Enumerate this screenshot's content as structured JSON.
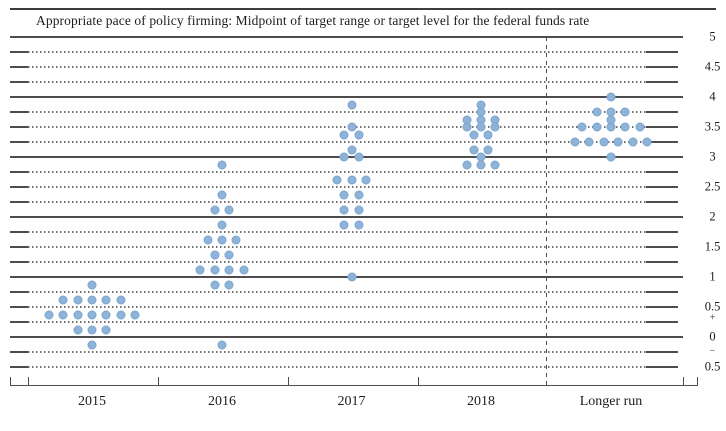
{
  "title": "Appropriate pace of policy firming: Midpoint of target range or target level for the federal funds rate",
  "chart_data": {
    "type": "scatter",
    "subtype": "fomc-dot-plot",
    "title": "Appropriate pace of policy firming: Midpoint of target range or target level for the federal funds rate",
    "xlabel": "",
    "ylabel": "",
    "x_categories": [
      "2015",
      "2016",
      "2017",
      "2018",
      "Longer run"
    ],
    "ylim": [
      -0.5,
      5
    ],
    "grid": {
      "solid_lines_at": [
        0,
        1,
        2,
        3,
        4,
        5
      ],
      "dotted_lines_step": 0.25,
      "dashed_divider_before": "Longer run"
    },
    "legend": "none",
    "dot_color": "#8db3d8",
    "y_axis": {
      "side": "right",
      "ticks": [
        {
          "label": "5",
          "value": 5
        },
        {
          "label": "4.5",
          "value": 4.5
        },
        {
          "label": "4",
          "value": 4
        },
        {
          "label": "3.5",
          "value": 3.5
        },
        {
          "label": "3",
          "value": 3
        },
        {
          "label": "2.5",
          "value": 2.5
        },
        {
          "label": "2",
          "value": 2
        },
        {
          "label": "1.5",
          "value": 1.5
        },
        {
          "label": "1",
          "value": 1
        },
        {
          "label": "0.5",
          "value": 0.5
        },
        {
          "label": "+",
          "value": 0.32,
          "small": true
        },
        {
          "label": "0",
          "value": 0
        },
        {
          "label": "−",
          "value": -0.24,
          "small": true
        },
        {
          "label": "0.5",
          "value": -0.5
        }
      ]
    },
    "series": [
      {
        "category": "2015",
        "dots": [
          {
            "rate": 0.875,
            "count": 1
          },
          {
            "rate": 0.625,
            "count": 5
          },
          {
            "rate": 0.375,
            "count": 7
          },
          {
            "rate": 0.125,
            "count": 3
          },
          {
            "rate": -0.125,
            "count": 1
          }
        ]
      },
      {
        "category": "2016",
        "dots": [
          {
            "rate": 2.875,
            "count": 1
          },
          {
            "rate": 2.375,
            "count": 1
          },
          {
            "rate": 2.125,
            "count": 2
          },
          {
            "rate": 1.875,
            "count": 1
          },
          {
            "rate": 1.625,
            "count": 3
          },
          {
            "rate": 1.375,
            "count": 2
          },
          {
            "rate": 1.125,
            "count": 4
          },
          {
            "rate": 0.875,
            "count": 2
          },
          {
            "rate": -0.125,
            "count": 1
          }
        ]
      },
      {
        "category": "2017",
        "dots": [
          {
            "rate": 3.875,
            "count": 1
          },
          {
            "rate": 3.5,
            "count": 1
          },
          {
            "rate": 3.375,
            "count": 2
          },
          {
            "rate": 3.125,
            "count": 1
          },
          {
            "rate": 3.0,
            "count": 2
          },
          {
            "rate": 2.625,
            "count": 3
          },
          {
            "rate": 2.375,
            "count": 2
          },
          {
            "rate": 2.125,
            "count": 2
          },
          {
            "rate": 1.875,
            "count": 2
          },
          {
            "rate": 1.0,
            "count": 1
          }
        ]
      },
      {
        "category": "2018",
        "dots": [
          {
            "rate": 3.875,
            "count": 1
          },
          {
            "rate": 3.75,
            "count": 1
          },
          {
            "rate": 3.625,
            "count": 3
          },
          {
            "rate": 3.5,
            "count": 3
          },
          {
            "rate": 3.375,
            "count": 2
          },
          {
            "rate": 3.125,
            "count": 2
          },
          {
            "rate": 3.0,
            "count": 1
          },
          {
            "rate": 2.875,
            "count": 3
          }
        ]
      },
      {
        "category": "Longer run",
        "dots": [
          {
            "rate": 4.0,
            "count": 1
          },
          {
            "rate": 3.75,
            "count": 3
          },
          {
            "rate": 3.625,
            "count": 1
          },
          {
            "rate": 3.5,
            "count": 5
          },
          {
            "rate": 3.25,
            "count": 6
          },
          {
            "rate": 3.0,
            "count": 1
          }
        ]
      }
    ]
  }
}
